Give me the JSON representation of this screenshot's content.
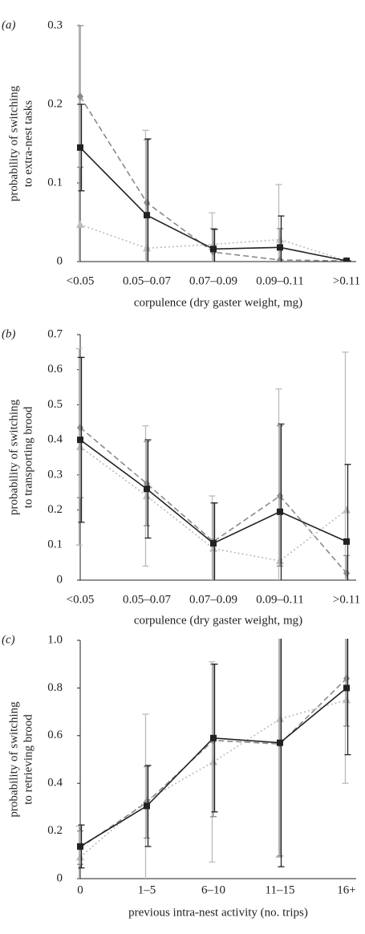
{
  "chart_data": [
    {
      "type": "line",
      "label": "(a)",
      "xlabel": "corpulence (dry gaster weight, mg)",
      "ylabel": [
        "probability of switching",
        "to extra-nest tasks"
      ],
      "categories": [
        "<0.05",
        "0.05–0.07",
        "0.07–0.09",
        "0.09–0.11",
        ">0.11"
      ],
      "ylim": [
        0,
        0.3
      ],
      "yticks": [
        0,
        0.1,
        0.2,
        0.3
      ],
      "grid": false,
      "series": [
        {
          "color": "#bbbbbb",
          "marker": "triangle",
          "line_style": "dotted",
          "values": [
            0.047,
            0.017,
            0.022,
            0.028,
            0.001
          ],
          "errors": [
            0.26,
            0.15,
            0.04,
            0.07,
            0
          ]
        },
        {
          "color": "#8a8a8a",
          "marker": "diamond",
          "line_style": "dashed",
          "values": [
            0.21,
            0.075,
            0.012,
            0.002,
            0.001
          ],
          "errors": [
            0.09,
            0.08,
            0.03,
            0.04,
            0
          ]
        },
        {
          "color": "#222222",
          "marker": "square",
          "line_style": "solid",
          "values": [
            0.145,
            0.059,
            0.016,
            0.018,
            0.001
          ],
          "errors": [
            0.055,
            0.097,
            0.025,
            0.04,
            0
          ]
        }
      ]
    },
    {
      "type": "line",
      "label": "(b)",
      "xlabel": "corpulence (dry gaster weight, mg)",
      "ylabel": [
        "probability of switching",
        "to transporting brood"
      ],
      "categories": [
        "<0.05",
        "0.05–0.07",
        "0.07–0.09",
        "0.09–0.11",
        ">0.11"
      ],
      "ylim": [
        0,
        0.7
      ],
      "yticks": [
        0,
        0.1,
        0.2,
        0.3,
        0.4,
        0.5,
        0.6,
        0.7
      ],
      "grid": false,
      "series": [
        {
          "color": "#bbbbbb",
          "marker": "triangle",
          "line_style": "dotted",
          "values": [
            0.38,
            0.24,
            0.09,
            0.055,
            0.2
          ],
          "errors": [
            0.28,
            0.2,
            0.15,
            0.49,
            0.45
          ]
        },
        {
          "color": "#8a8a8a",
          "marker": "diamond",
          "line_style": "dashed",
          "values": [
            0.435,
            0.275,
            0.11,
            0.24,
            0.02
          ],
          "errors": [
            0.2,
            0.12,
            0.11,
            0.2,
            0.05
          ]
        },
        {
          "color": "#222222",
          "marker": "square",
          "line_style": "solid",
          "values": [
            0.4,
            0.26,
            0.105,
            0.195,
            0.11
          ],
          "errors": [
            0.235,
            0.14,
            0.115,
            0.25,
            0.22
          ]
        }
      ]
    },
    {
      "type": "line",
      "label": "(c)",
      "xlabel": "previous intra-nest activity (no. trips)",
      "ylabel": [
        "probability of switching",
        "to retrieving brood"
      ],
      "categories": [
        "0",
        "1–5",
        "6–10",
        "11–15",
        "16+"
      ],
      "ylim": [
        0,
        1.0
      ],
      "yticks": [
        0,
        0.2,
        0.4,
        0.6,
        0.8,
        {
          "value": 1.0,
          "label": "1.0"
        }
      ],
      "grid": false,
      "series": [
        {
          "color": "#bbbbbb",
          "marker": "triangle",
          "line_style": "dotted",
          "values": [
            0.09,
            0.33,
            0.49,
            0.67,
            0.75
          ],
          "errors": [
            0.13,
            0.36,
            0.42,
            0.58,
            0.35
          ]
        },
        {
          "color": "#8a8a8a",
          "marker": "diamond",
          "line_style": "dashed",
          "values": [
            0.13,
            0.32,
            0.58,
            0.565,
            0.84
          ],
          "errors": [
            0.07,
            0.15,
            0.32,
            0.47,
            0.2
          ]
        },
        {
          "color": "#222222",
          "marker": "square",
          "line_style": "solid",
          "values": [
            0.135,
            0.305,
            0.59,
            0.57,
            0.8
          ],
          "errors": [
            0.09,
            0.17,
            0.31,
            0.52,
            0.28
          ]
        }
      ]
    }
  ]
}
